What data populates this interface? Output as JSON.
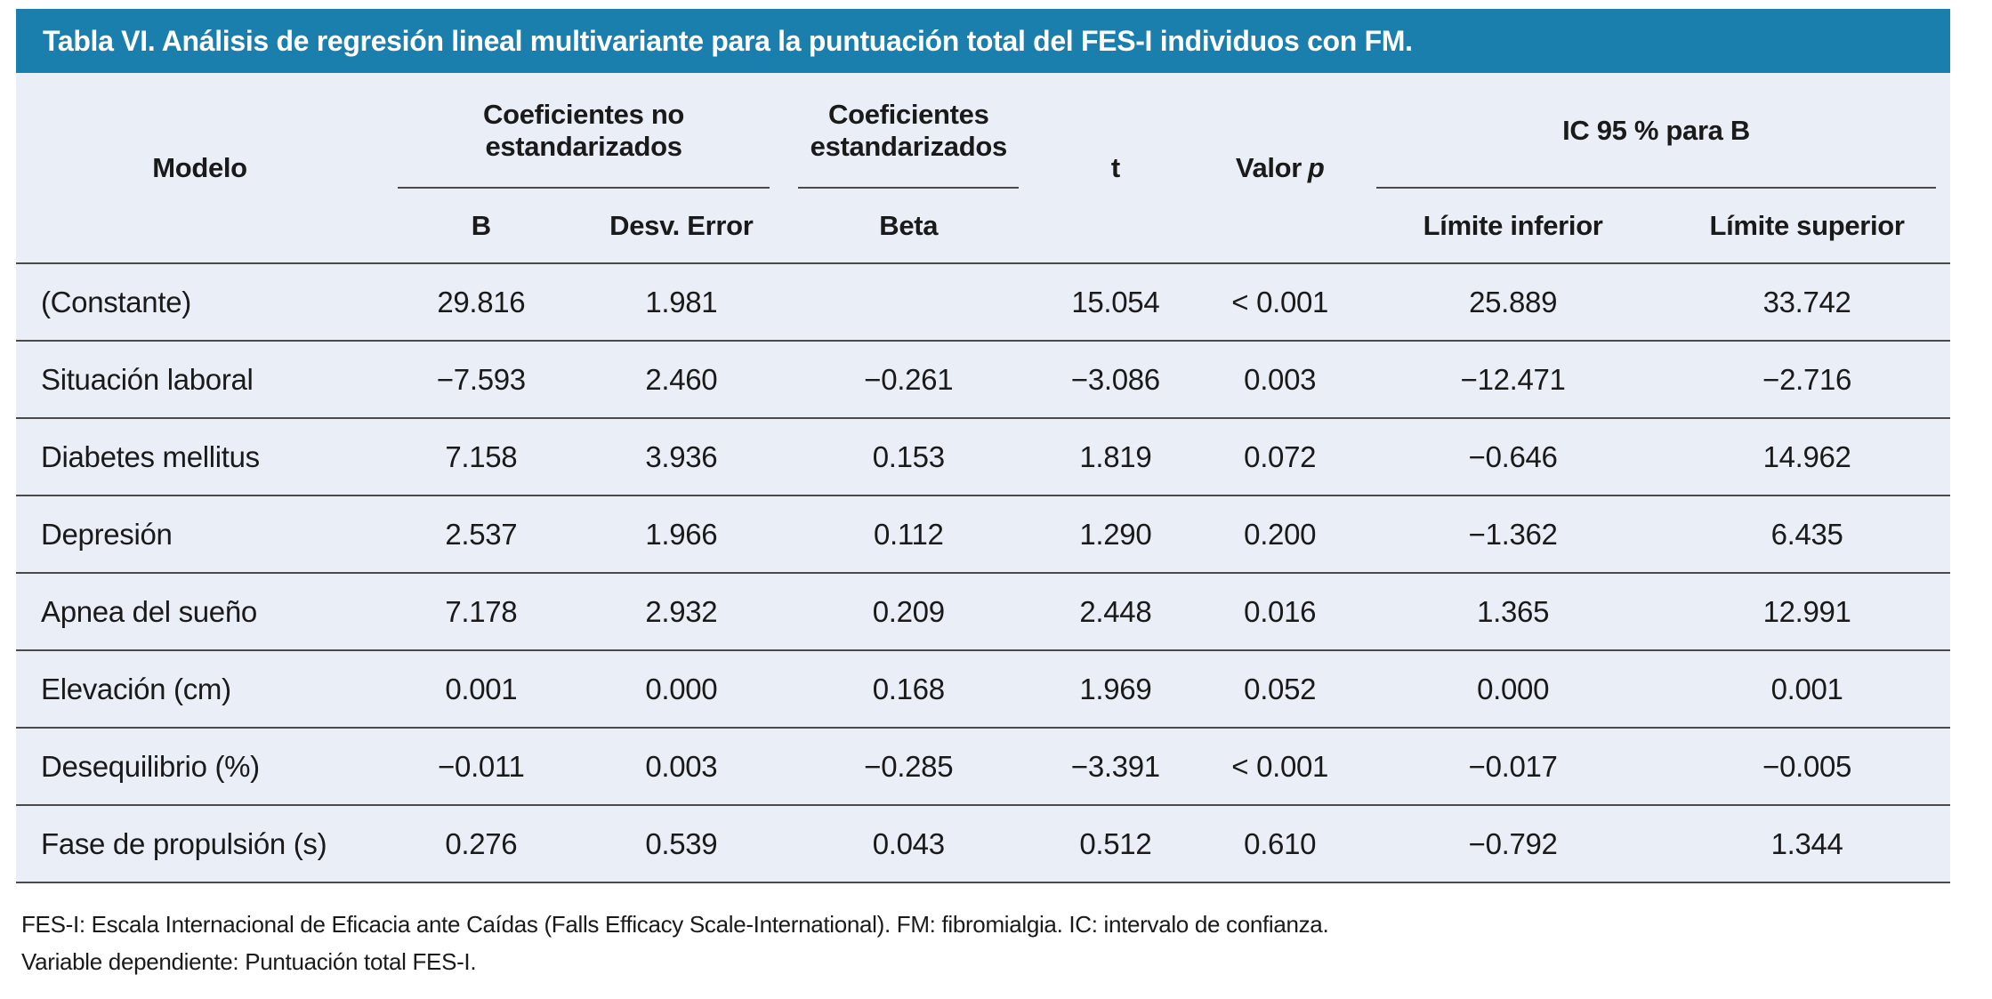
{
  "title": "Tabla VI. Análisis de regresión lineal multivariante para la puntuación total del FES-I individuos con FM.",
  "colors": {
    "title_bar_bg": "#1b7fad",
    "title_text": "#ffffff",
    "table_bg": "#e9eef7",
    "rule_line": "#4a4a4a"
  },
  "header": {
    "modelo": "Modelo",
    "group_no_estandarizados": "Coeficientes no estandarizados",
    "group_estandarizados": "Coeficientes estandarizados",
    "t": "t",
    "valor": "Valor",
    "p": "p",
    "group_ic": "IC 95 % para B",
    "sub_b": "B",
    "sub_desv_error": "Desv. Error",
    "sub_beta": "Beta",
    "sub_limite_inferior": "Límite inferior",
    "sub_limite_superior": "Límite superior"
  },
  "rows": [
    {
      "modelo": "(Constante)",
      "b": "29.816",
      "desv_error": "1.981",
      "beta": "",
      "t": "15.054",
      "p": "< 0.001",
      "li": "25.889",
      "ls": "33.742"
    },
    {
      "modelo": "Situación laboral",
      "b": "−7.593",
      "desv_error": "2.460",
      "beta": "−0.261",
      "t": "−3.086",
      "p": "0.003",
      "li": "−12.471",
      "ls": "−2.716"
    },
    {
      "modelo": "Diabetes mellitus",
      "b": "7.158",
      "desv_error": "3.936",
      "beta": "0.153",
      "t": "1.819",
      "p": "0.072",
      "li": "−0.646",
      "ls": "14.962"
    },
    {
      "modelo": "Depresión",
      "b": "2.537",
      "desv_error": "1.966",
      "beta": "0.112",
      "t": "1.290",
      "p": "0.200",
      "li": "−1.362",
      "ls": "6.435"
    },
    {
      "modelo": "Apnea del sueño",
      "b": "7.178",
      "desv_error": "2.932",
      "beta": "0.209",
      "t": "2.448",
      "p": "0.016",
      "li": "1.365",
      "ls": "12.991"
    },
    {
      "modelo": "Elevación (cm)",
      "b": "0.001",
      "desv_error": "0.000",
      "beta": "0.168",
      "t": "1.969",
      "p": "0.052",
      "li": "0.000",
      "ls": "0.001"
    },
    {
      "modelo": "Desequilibrio (%)",
      "b": "−0.011",
      "desv_error": "0.003",
      "beta": "−0.285",
      "t": "−3.391",
      "p": "< 0.001",
      "li": "−0.017",
      "ls": "−0.005"
    },
    {
      "modelo": "Fase de propulsión (s)",
      "b": "0.276",
      "desv_error": "0.539",
      "beta": "0.043",
      "t": "0.512",
      "p": "0.610",
      "li": "−0.792",
      "ls": "1.344"
    }
  ],
  "footnotes": {
    "line1": "FES-I: Escala Internacional de Eficacia ante Caídas (Falls Efficacy Scale-International). FM: fibromialgia. IC: intervalo de confianza.",
    "line2": "Variable dependiente: Puntuación total FES-I."
  }
}
